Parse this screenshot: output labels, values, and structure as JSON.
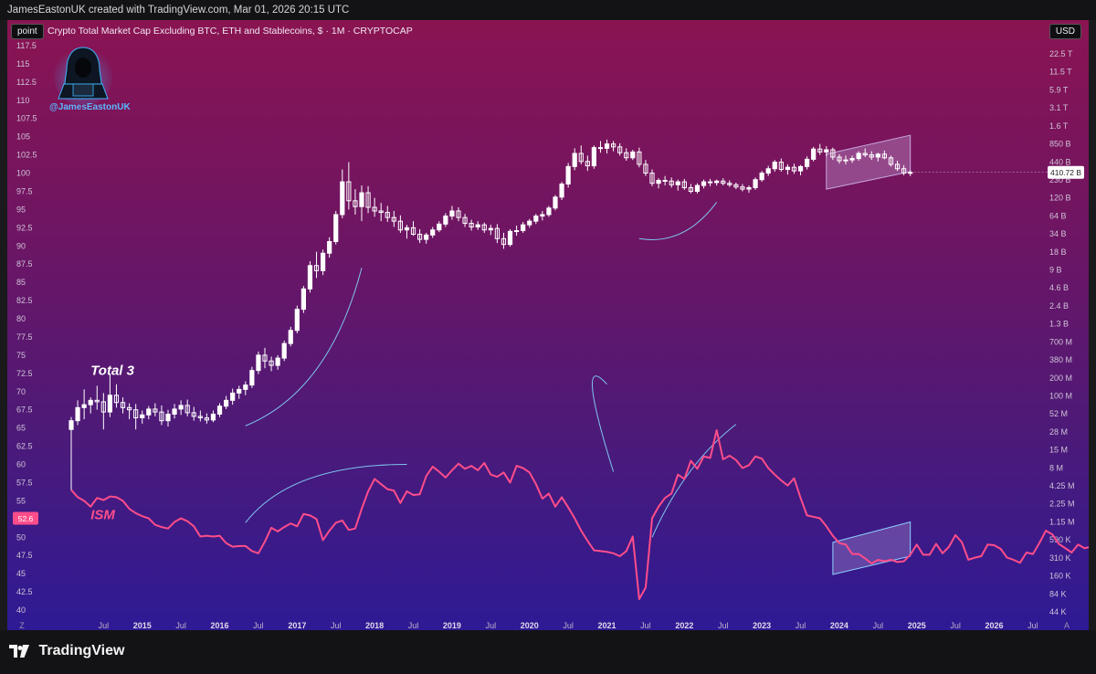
{
  "header": {
    "attribution": "JamesEastonUK created with TradingView.com, Mar 01, 2026 20:15 UTC"
  },
  "toolbar": {
    "point_label": "point",
    "currency_label": "USD",
    "symbol_title": "Crypto Total Market Cap Excluding BTC, ETH and Stablecoins, $ · 1M · CRYPTOCAP"
  },
  "author": {
    "handle": "@JamesEastonUK",
    "avatar_icon": "hooded-hacker-icon"
  },
  "footer": {
    "brand": "TradingView",
    "logo_icon": "tradingview-logo-icon"
  },
  "corner_labels": {
    "bottom_left": "Z",
    "bottom_right": "A"
  },
  "colors": {
    "candle_up": "#ffffff",
    "candle_down": "#ffffff",
    "ism_line": "#ff4d8a",
    "channel_fill": "#c8a8e0",
    "channel_edge": "#8fd0ff",
    "arrow": "#7fc6ef",
    "price_badge": "#ffffff",
    "ism_badge": "#ff4d8a"
  },
  "chart_data": {
    "type": "candlestick",
    "title": "Crypto Total Market Cap Excluding BTC, ETH and Stablecoins, $ · 1M · CRYPTOCAP",
    "x_ticks": [
      "Jul",
      "2015",
      "Jul",
      "2016",
      "Jul",
      "2017",
      "Jul",
      "2018",
      "Jul",
      "2019",
      "Jul",
      "2020",
      "Jul",
      "2021",
      "Jul",
      "2022",
      "Jul",
      "2023",
      "Jul",
      "2024",
      "Jul",
      "2025",
      "Jul",
      "2026",
      "Jul"
    ],
    "x_range": [
      "2014-02",
      "2026-08"
    ],
    "left_axis": {
      "ticks": [
        "117.5",
        "115",
        "112.5",
        "110",
        "107.5",
        "105",
        "102.5",
        "100",
        "97.5",
        "95",
        "92.5",
        "90",
        "87.5",
        "85",
        "82.5",
        "80",
        "77.5",
        "75",
        "72.5",
        "70",
        "67.5",
        "65",
        "62.5",
        "60",
        "57.5",
        "55",
        "52.5",
        "50",
        "47.5",
        "45",
        "42.5",
        "40"
      ],
      "range": [
        39.5,
        118.5
      ]
    },
    "right_axis": {
      "scale": "log",
      "ticks": [
        "22.5 T",
        "11.5 T",
        "5.9 T",
        "3.1 T",
        "1.6 T",
        "850 B",
        "440 B",
        "230 B",
        "120 B",
        "64 B",
        "34 B",
        "18 B",
        "9 B",
        "4.6 B",
        "2.4 B",
        "1.3 B",
        "700 M",
        "380 M",
        "200 M",
        "100 M",
        "52 M",
        "28 M",
        "15 M",
        "8 M",
        "4.25 M",
        "2.25 M",
        "1.15 M",
        "590 K",
        "310 K",
        "160 K",
        "84 K",
        "44 K"
      ]
    },
    "annotations": [
      {
        "text": "Total 3",
        "color": "#ffffff",
        "italic": true
      },
      {
        "text": "ISM",
        "color": "#ff4d8a",
        "italic": true
      }
    ],
    "last_price_label": "410.72 B",
    "ism_last_label": "52.6",
    "series": [
      {
        "name": "Total 3",
        "axis": "right",
        "ohlc": [
          [
            64.8,
            66.5,
            63.6,
            66.0
          ],
          [
            66.0,
            68.8,
            65.4,
            67.8
          ],
          [
            67.8,
            70.3,
            66.2,
            68.2
          ],
          [
            68.2,
            69.2,
            67.0,
            68.8
          ],
          [
            68.8,
            70.8,
            67.5,
            68.6
          ],
          [
            68.6,
            69.8,
            64.8,
            67.2
          ],
          [
            67.2,
            72.5,
            66.5,
            69.5
          ],
          [
            69.5,
            71.0,
            67.8,
            68.5
          ],
          [
            68.5,
            69.2,
            67.0,
            67.8
          ],
          [
            67.8,
            68.4,
            66.2,
            67.5
          ],
          [
            67.5,
            68.3,
            64.8,
            66.4
          ],
          [
            66.4,
            67.4,
            65.6,
            66.8
          ],
          [
            66.8,
            68.0,
            66.2,
            67.6
          ],
          [
            67.6,
            68.4,
            66.6,
            67.2
          ],
          [
            67.2,
            68.1,
            65.4,
            66.0
          ],
          [
            66.0,
            67.5,
            65.2,
            66.9
          ],
          [
            66.9,
            68.3,
            66.3,
            67.6
          ],
          [
            67.6,
            68.8,
            66.8,
            68.1
          ],
          [
            68.1,
            68.9,
            66.6,
            67.1
          ],
          [
            67.1,
            67.9,
            66.0,
            66.6
          ],
          [
            66.6,
            67.4,
            65.9,
            66.4
          ],
          [
            66.4,
            67.0,
            65.6,
            66.1
          ],
          [
            66.1,
            67.4,
            65.8,
            66.9
          ],
          [
            66.9,
            68.4,
            66.5,
            68.0
          ],
          [
            68.0,
            69.4,
            67.6,
            68.8
          ],
          [
            68.8,
            70.4,
            68.2,
            69.8
          ],
          [
            69.8,
            70.8,
            69.0,
            70.3
          ],
          [
            70.3,
            71.4,
            69.5,
            70.9
          ],
          [
            70.9,
            73.4,
            70.5,
            72.9
          ],
          [
            72.9,
            75.5,
            72.4,
            75.0
          ],
          [
            75.0,
            76.0,
            73.2,
            74.2
          ],
          [
            74.2,
            74.8,
            72.8,
            73.6
          ],
          [
            73.6,
            75.0,
            73.0,
            74.6
          ],
          [
            74.6,
            77.0,
            74.2,
            76.6
          ],
          [
            76.6,
            78.9,
            76.2,
            78.4
          ],
          [
            78.4,
            81.8,
            78.0,
            81.3
          ],
          [
            81.3,
            84.5,
            80.8,
            84.1
          ],
          [
            84.1,
            87.9,
            83.6,
            87.3
          ],
          [
            87.3,
            89.2,
            85.6,
            86.6
          ],
          [
            86.6,
            89.5,
            86.0,
            89.0
          ],
          [
            89.0,
            91.2,
            88.4,
            90.6
          ],
          [
            90.6,
            94.8,
            90.2,
            94.3
          ],
          [
            94.3,
            100.5,
            93.8,
            98.8
          ],
          [
            98.8,
            101.5,
            95.0,
            96.2
          ],
          [
            96.2,
            97.8,
            94.3,
            95.4
          ],
          [
            95.4,
            98.3,
            93.4,
            97.3
          ],
          [
            97.3,
            98.2,
            94.5,
            95.3
          ],
          [
            95.3,
            96.6,
            94.0,
            94.8
          ],
          [
            94.8,
            95.9,
            93.4,
            94.6
          ],
          [
            94.6,
            95.5,
            93.3,
            93.9
          ],
          [
            93.9,
            94.8,
            92.6,
            93.4
          ],
          [
            93.4,
            94.2,
            91.8,
            92.2
          ],
          [
            92.2,
            92.9,
            91.0,
            92.5
          ],
          [
            92.5,
            93.4,
            91.4,
            91.6
          ],
          [
            91.6,
            92.3,
            90.4,
            90.9
          ],
          [
            90.9,
            91.8,
            90.3,
            91.5
          ],
          [
            91.5,
            92.6,
            91.1,
            92.2
          ],
          [
            92.2,
            93.4,
            91.9,
            93.0
          ],
          [
            93.0,
            94.5,
            92.6,
            94.1
          ],
          [
            94.1,
            95.5,
            93.6,
            94.8
          ],
          [
            94.8,
            95.3,
            93.4,
            93.9
          ],
          [
            93.9,
            94.4,
            92.6,
            93.1
          ],
          [
            93.1,
            93.6,
            92.1,
            92.6
          ],
          [
            92.6,
            93.4,
            92.2,
            92.9
          ],
          [
            92.9,
            93.2,
            91.8,
            92.2
          ],
          [
            92.2,
            92.9,
            91.5,
            92.4
          ],
          [
            92.4,
            93.0,
            90.4,
            91.0
          ],
          [
            91.0,
            91.8,
            89.6,
            90.2
          ],
          [
            90.2,
            92.3,
            89.9,
            92.0
          ],
          [
            92.0,
            92.8,
            91.4,
            92.1
          ],
          [
            92.1,
            93.3,
            91.8,
            92.9
          ],
          [
            92.9,
            93.7,
            92.5,
            93.4
          ],
          [
            93.4,
            94.4,
            93.0,
            94.1
          ],
          [
            94.1,
            94.8,
            93.5,
            94.3
          ],
          [
            94.3,
            95.5,
            94.0,
            95.2
          ],
          [
            95.2,
            97.0,
            94.9,
            96.7
          ],
          [
            96.7,
            98.8,
            96.3,
            98.5
          ],
          [
            98.5,
            101.4,
            98.0,
            100.9
          ],
          [
            100.9,
            103.4,
            100.4,
            102.7
          ],
          [
            102.7,
            103.8,
            101.2,
            101.6
          ],
          [
            101.6,
            102.4,
            100.3,
            101.0
          ],
          [
            101.0,
            103.8,
            100.6,
            103.5
          ],
          [
            103.5,
            104.4,
            102.8,
            103.4
          ],
          [
            103.4,
            104.6,
            102.7,
            104.0
          ],
          [
            104.0,
            104.4,
            103.0,
            103.6
          ],
          [
            103.6,
            104.1,
            102.4,
            102.8
          ],
          [
            102.8,
            103.4,
            101.7,
            102.1
          ],
          [
            102.1,
            103.2,
            101.8,
            102.9
          ],
          [
            102.9,
            103.5,
            100.8,
            101.2
          ],
          [
            101.2,
            101.8,
            99.6,
            100.0
          ],
          [
            100.0,
            100.5,
            98.2,
            98.6
          ],
          [
            98.6,
            99.3,
            97.9,
            99.0
          ],
          [
            99.0,
            99.6,
            98.3,
            98.9
          ],
          [
            98.9,
            99.4,
            98.0,
            98.4
          ],
          [
            98.4,
            99.1,
            97.6,
            98.8
          ],
          [
            98.8,
            99.2,
            97.7,
            98.0
          ],
          [
            98.0,
            98.5,
            97.2,
            97.5
          ],
          [
            97.5,
            98.6,
            97.2,
            98.3
          ],
          [
            98.3,
            99.1,
            97.9,
            98.8
          ],
          [
            98.8,
            99.2,
            98.2,
            98.7
          ],
          [
            98.7,
            99.1,
            98.3,
            98.9
          ],
          [
            98.9,
            99.3,
            98.3,
            98.6
          ],
          [
            98.6,
            99.0,
            98.1,
            98.4
          ],
          [
            98.4,
            98.7,
            97.8,
            98.1
          ],
          [
            98.1,
            98.5,
            97.5,
            97.8
          ],
          [
            97.8,
            98.3,
            97.3,
            98.0
          ],
          [
            98.0,
            99.4,
            97.7,
            99.1
          ],
          [
            99.1,
            100.3,
            98.8,
            100.0
          ],
          [
            100.0,
            101.0,
            99.6,
            100.6
          ],
          [
            100.6,
            101.8,
            100.2,
            101.5
          ],
          [
            101.5,
            102.0,
            100.2,
            100.5
          ],
          [
            100.5,
            101.2,
            99.8,
            100.8
          ],
          [
            100.8,
            101.3,
            99.9,
            100.3
          ],
          [
            100.3,
            101.1,
            99.7,
            100.9
          ],
          [
            100.9,
            102.3,
            100.5,
            101.9
          ],
          [
            101.9,
            103.6,
            101.6,
            103.3
          ],
          [
            103.3,
            104.0,
            102.5,
            102.9
          ],
          [
            102.9,
            103.7,
            102.3,
            103.2
          ],
          [
            103.2,
            103.5,
            101.8,
            102.2
          ],
          [
            102.2,
            102.6,
            101.3,
            101.7
          ],
          [
            101.7,
            102.4,
            101.2,
            101.8
          ],
          [
            101.8,
            102.4,
            101.4,
            102.0
          ],
          [
            102.0,
            103.0,
            101.7,
            102.7
          ],
          [
            102.7,
            103.4,
            102.2,
            102.5
          ],
          [
            102.5,
            103.0,
            101.8,
            102.2
          ],
          [
            102.2,
            102.8,
            101.6,
            102.6
          ],
          [
            102.6,
            103.1,
            101.9,
            102.1
          ],
          [
            102.1,
            102.4,
            100.9,
            101.2
          ],
          [
            101.2,
            101.7,
            100.3,
            100.6
          ],
          [
            100.6,
            101.1,
            99.7,
            100.0
          ],
          [
            100.0,
            100.4,
            99.6,
            100.1
          ]
        ]
      },
      {
        "name": "ISM",
        "axis": "left",
        "values": [
          56.5,
          55.5,
          55.0,
          54.2,
          55.4,
          55.1,
          55.6,
          55.5,
          55.0,
          53.9,
          53.3,
          52.9,
          52.6,
          51.7,
          51.4,
          51.2,
          52.1,
          52.6,
          52.2,
          51.5,
          50.1,
          50.2,
          50.1,
          50.2,
          49.2,
          48.7,
          48.8,
          48.8,
          48.1,
          47.8,
          49.4,
          51.3,
          50.8,
          51.4,
          51.9,
          51.5,
          53.2,
          53.0,
          52.5,
          49.6,
          50.9,
          52.0,
          52.3,
          51.0,
          51.2,
          53.9,
          56.3,
          58.0,
          57.3,
          56.6,
          56.4,
          54.7,
          56.3,
          55.8,
          55.9,
          58.4,
          59.7,
          59.0,
          58.2,
          59.2,
          60.1,
          59.4,
          59.8,
          59.2,
          60.2,
          58.6,
          58.3,
          58.9,
          57.5,
          59.8,
          59.5,
          58.9,
          57.3,
          55.3,
          56.0,
          54.2,
          55.5,
          54.1,
          52.6,
          50.9,
          49.5,
          48.2,
          48.1,
          48.0,
          47.8,
          47.4,
          48.1,
          50.1,
          41.5,
          43.1,
          52.6,
          54.2,
          55.4,
          56.0,
          58.6,
          58.0,
          60.5,
          59.4,
          61.1,
          60.9,
          64.7,
          60.7,
          61.2,
          60.6,
          59.5,
          59.9,
          61.1,
          60.8,
          59.5,
          58.6,
          57.8,
          57.1,
          58.1,
          55.4,
          53.0,
          52.8,
          52.6,
          51.5,
          50.2,
          49.2,
          49.0,
          47.7,
          47.7,
          47.1,
          46.4,
          46.9,
          46.7,
          46.9,
          46.6,
          46.7,
          47.6,
          49.0,
          47.6,
          47.6,
          49.1,
          47.8,
          48.7,
          50.3,
          49.3,
          46.9,
          47.2,
          47.4,
          49.0,
          48.9,
          48.4,
          47.2,
          46.9,
          46.5,
          47.9,
          47.7,
          49.2,
          50.9,
          50.4,
          49.1,
          48.5,
          47.9,
          49.0,
          48.5,
          48.7,
          48.0,
          48.2,
          49.3,
          49.2,
          49.1,
          48.4,
          48.2,
          48.5,
          52.6
        ]
      }
    ]
  }
}
